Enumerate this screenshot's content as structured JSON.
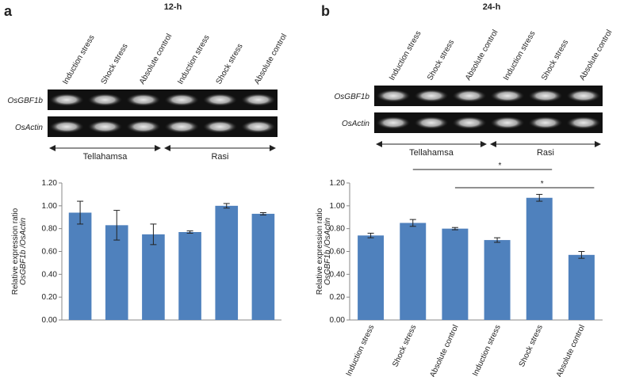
{
  "chart_data": [
    {
      "type": "bar",
      "panel_label": "a",
      "title": "12-h",
      "categories": [
        "Induction stress",
        "Shock stress",
        "Absolute control",
        "Induction stress",
        "Shock stress",
        "Absolute control"
      ],
      "values": [
        0.94,
        0.83,
        0.75,
        0.77,
        1.0,
        0.93
      ],
      "errors": [
        0.1,
        0.13,
        0.09,
        0.01,
        0.02,
        0.01
      ],
      "color": "#4f81bd",
      "gel_rows": [
        "OsGBF1b",
        "OsActin"
      ],
      "groups": [
        "Tellahamsa",
        "Rasi"
      ],
      "y_label": [
        "Relative expression ratio",
        "OsGBF1b /OsActin"
      ],
      "x_tick_labels": false,
      "ylim": [
        0,
        1.2
      ],
      "yticks": [
        {
          "value": 0,
          "label": "0.00"
        },
        {
          "value": 0.2,
          "label": "0.20"
        },
        {
          "value": 0.4,
          "label": "0.40"
        },
        {
          "value": 0.6,
          "label": "0.60"
        },
        {
          "value": 0.8,
          "label": "0.80"
        },
        {
          "value": 1.0,
          "label": "1.00"
        },
        {
          "value": 1.2,
          "label": "1.20"
        }
      ],
      "significance": []
    },
    {
      "type": "bar",
      "panel_label": "b",
      "title": "24-h",
      "categories": [
        "Induction stress",
        "Shock stress",
        "Absolute control",
        "Induction stress",
        "Shock stress",
        "Absolute control"
      ],
      "values": [
        0.74,
        0.85,
        0.8,
        0.7,
        1.07,
        0.57
      ],
      "errors": [
        0.02,
        0.03,
        0.01,
        0.02,
        0.03,
        0.03
      ],
      "color": "#4f81bd",
      "gel_rows": [
        "OsGBF1b",
        "OsActin"
      ],
      "groups": [
        "Tellahamsa",
        "Rasi"
      ],
      "y_label": [
        "Relative expression ratio",
        "OsGBF1b /OsActin"
      ],
      "x_tick_labels": true,
      "ylim": [
        0,
        1.2
      ],
      "yticks": [
        {
          "value": 0,
          "label": "0.00"
        },
        {
          "value": 0.2,
          "label": "0.20"
        },
        {
          "value": 0.4,
          "label": "0.40"
        },
        {
          "value": 0.6,
          "label": "0.60"
        },
        {
          "value": 0.8,
          "label": "0.80"
        },
        {
          "value": 1.0,
          "label": "1.00"
        },
        {
          "value": 1.2,
          "label": "1.20"
        }
      ],
      "significance": [
        {
          "text": "*",
          "from": 1,
          "to": 4
        },
        {
          "text": "*",
          "from": 2,
          "to": 5
        }
      ]
    }
  ]
}
